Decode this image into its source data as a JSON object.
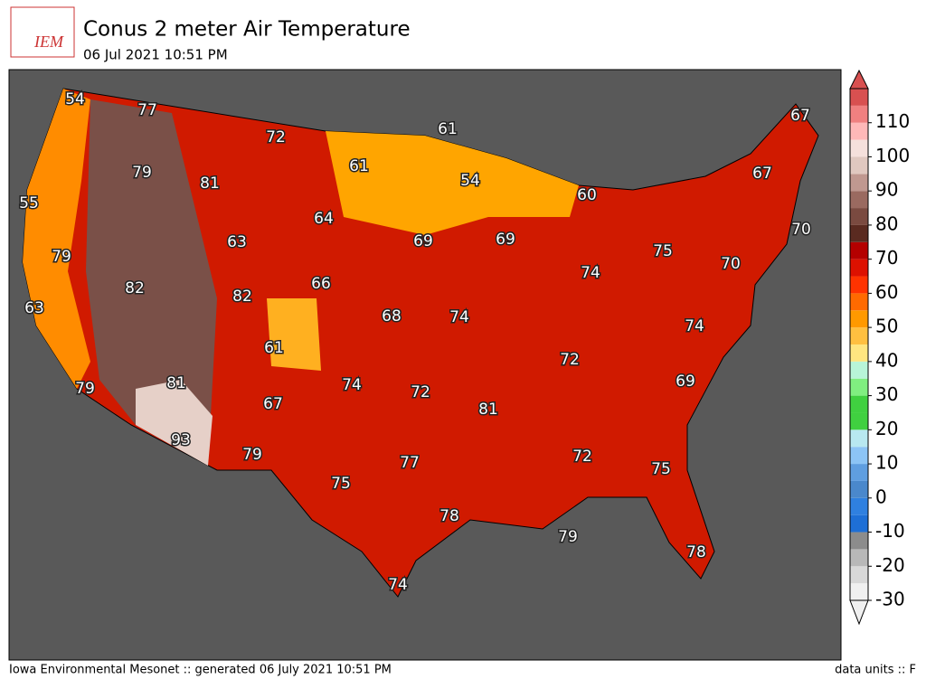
{
  "header": {
    "logo": "IEM",
    "title": "Conus 2 meter Air Temperature",
    "subtitle": "06 Jul 2021 10:51 PM"
  },
  "map": {
    "labels": [
      54,
      77,
      72,
      61,
      67,
      61,
      79,
      81,
      54,
      60,
      67,
      55,
      64,
      69,
      69,
      70,
      63,
      75,
      79,
      70,
      82,
      66,
      74,
      82,
      63,
      68,
      74,
      74,
      61,
      72,
      81,
      74,
      72,
      69,
      79,
      67,
      81,
      93,
      79,
      77,
      72,
      75,
      75,
      78,
      79,
      78,
      74
    ]
  },
  "colorbar": {
    "lim": [
      -30,
      120
    ],
    "ticks": [
      -30,
      -20,
      -10,
      0,
      10,
      20,
      30,
      40,
      50,
      60,
      70,
      80,
      90,
      100,
      110
    ],
    "colors": [
      "#f0f0f0",
      "#d8d8d8",
      "#b8b8b8",
      "#8c8c8c",
      "#1e6fd6",
      "#2f80e0",
      "#4a88cc",
      "#5f9ee0",
      "#8cc4f5",
      "#b8e8f0",
      "#40d040",
      "#40d040",
      "#80ee80",
      "#b8f5d8",
      "#ffe680",
      "#ffc040",
      "#ff9900",
      "#ff6a00",
      "#ff3300",
      "#dd1100",
      "#b40000",
      "#5a2a20",
      "#7a4a40",
      "#9a6a60",
      "#c09890",
      "#e0c8c0",
      "#f5e0dc",
      "#ffb8b8",
      "#f08080",
      "#d85050"
    ]
  },
  "footer": {
    "left": "Iowa Environmental Mesonet :: generated 06 July 2021 10:51 PM",
    "right": "data units :: F"
  }
}
